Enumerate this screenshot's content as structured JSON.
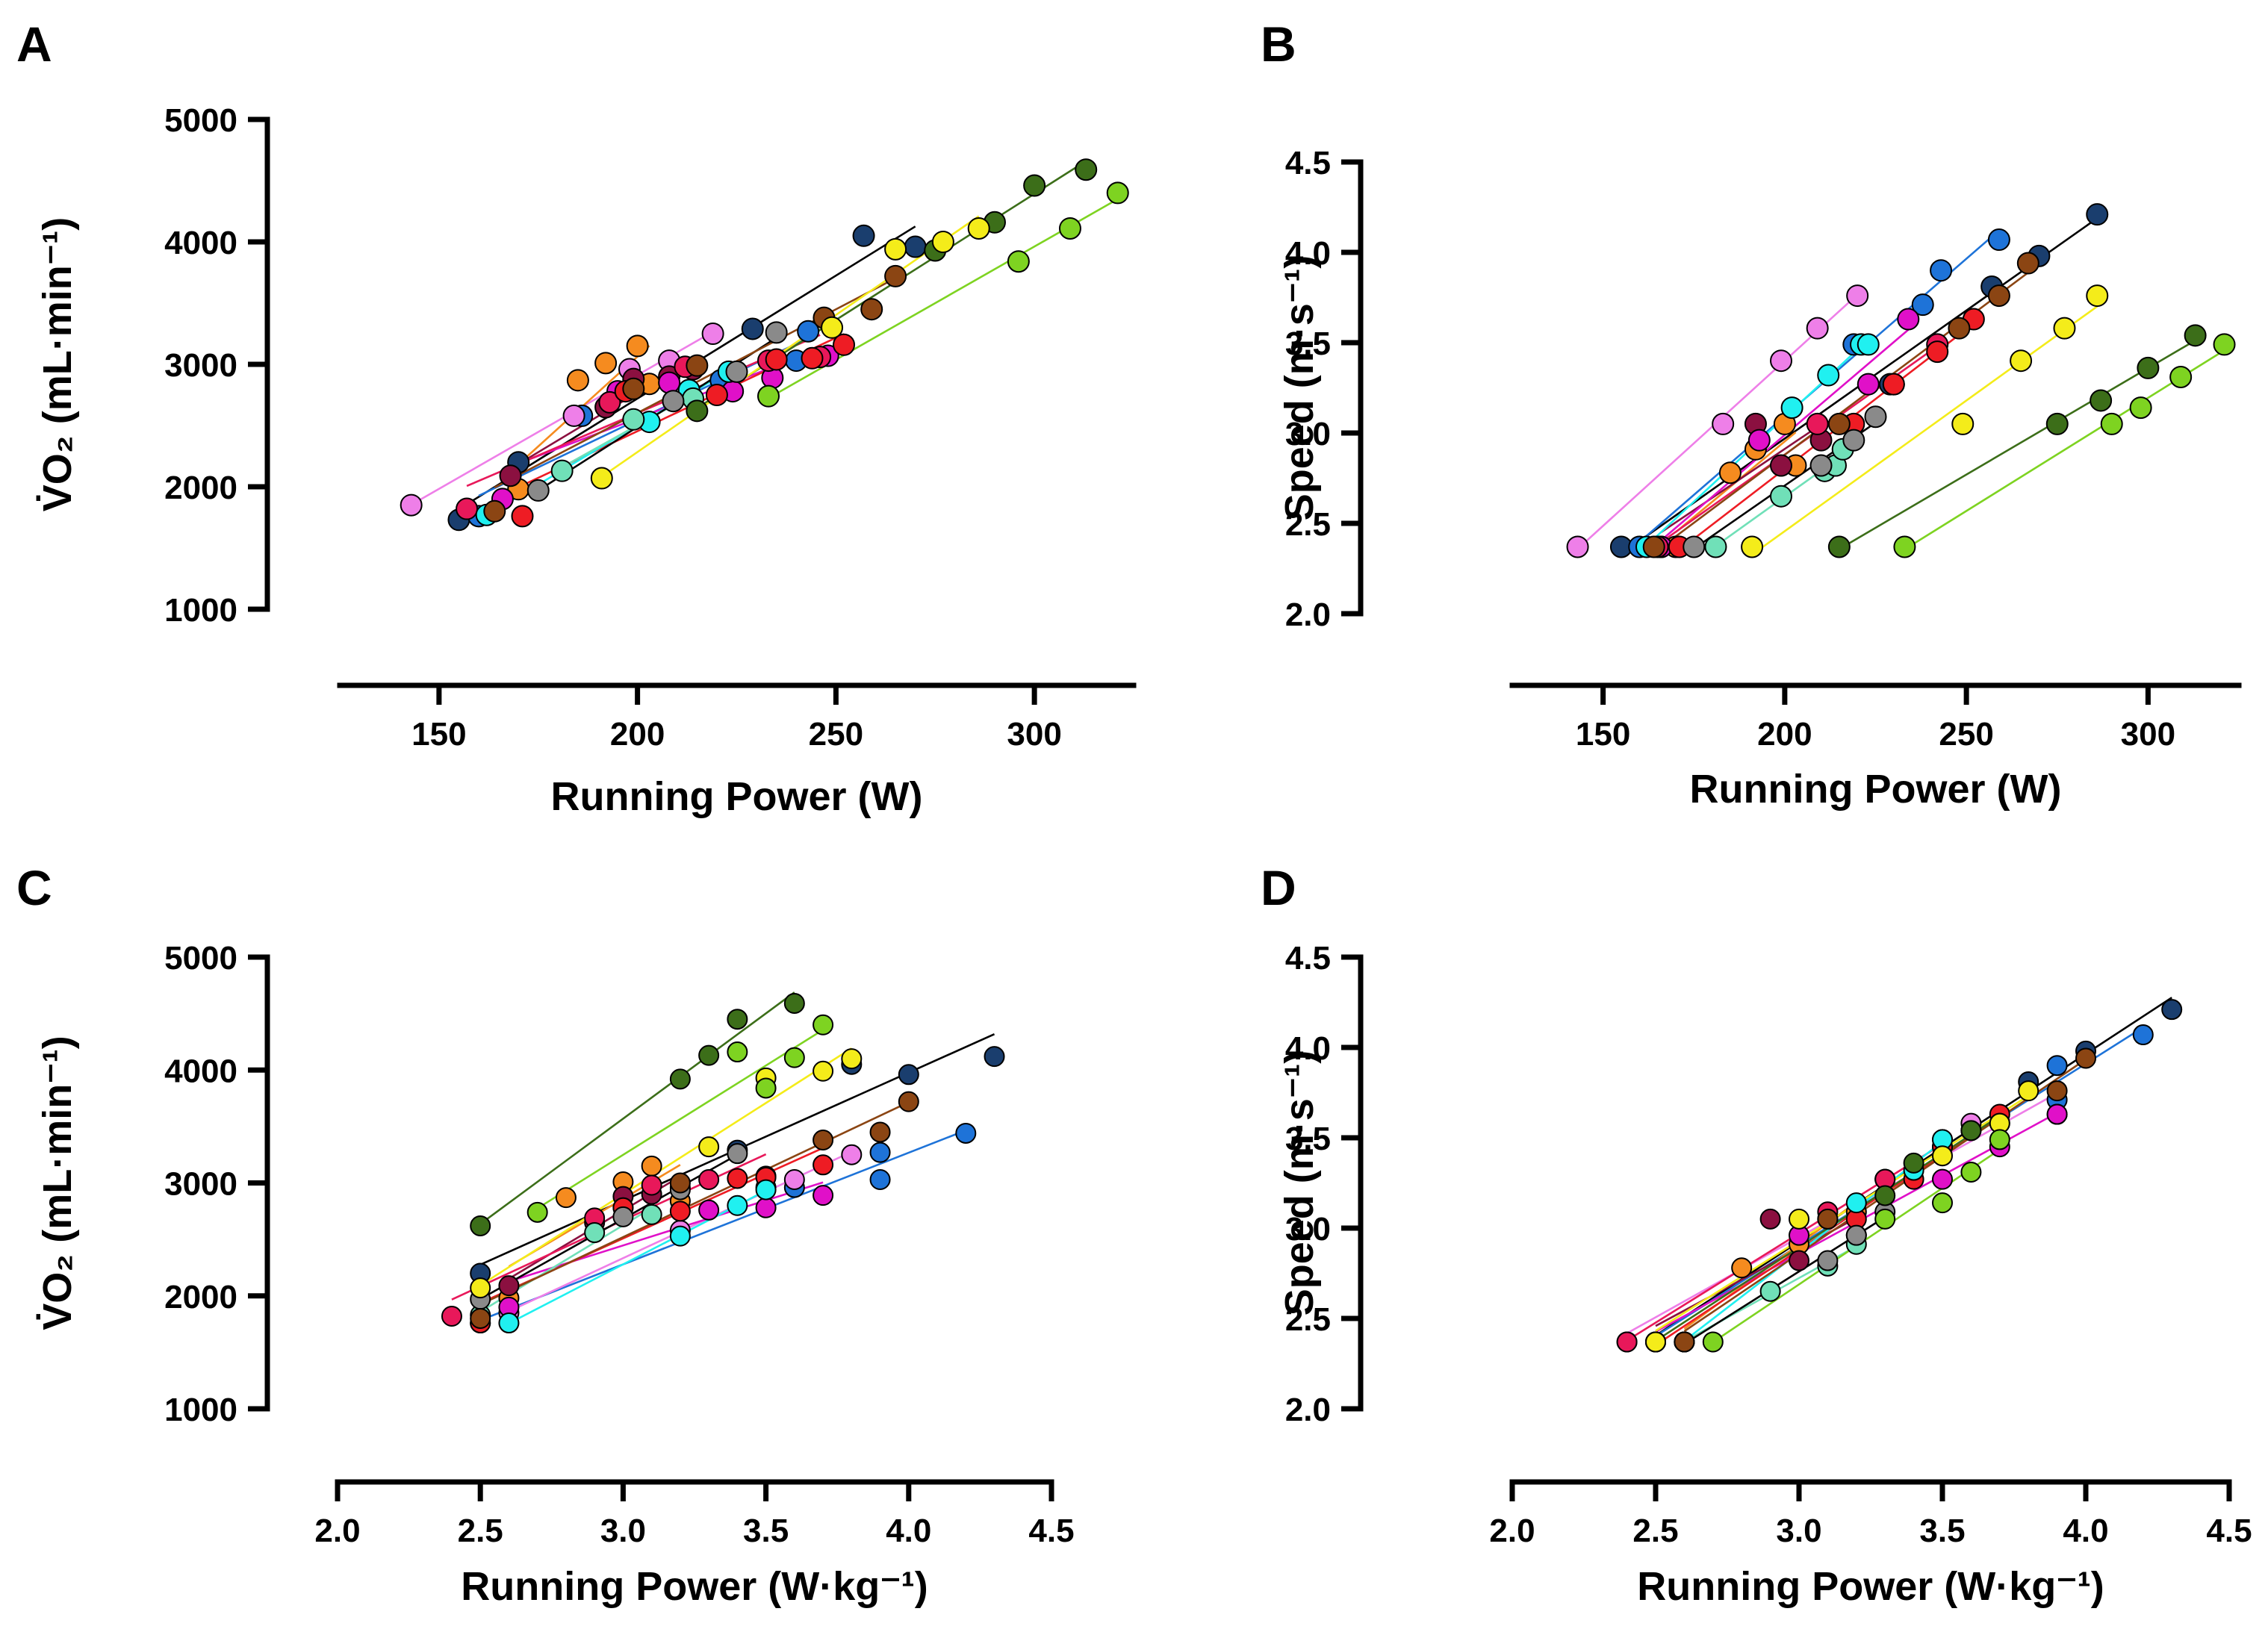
{
  "chart_data": [
    {
      "panel": "A",
      "type": "scatter",
      "xlabel": "Running Power (W)",
      "ylabel": "V̇O₂ (mL·min⁻¹)",
      "xlim": [
        125,
        325
      ],
      "ylim": [
        1000,
        5000
      ],
      "xticks": [
        150,
        200,
        250,
        300
      ],
      "yticks": [
        1000,
        2000,
        3000,
        4000,
        5000
      ],
      "series": [
        {
          "name": "navy",
          "color": "#1a3e6e",
          "x": [
            155,
            170,
            229,
            257,
            270
          ],
          "y": [
            1730,
            2200,
            3290,
            4050,
            3960
          ]
        },
        {
          "name": "blue",
          "color": "#1e73d8",
          "x": [
            160,
            186,
            221,
            240,
            243
          ],
          "y": [
            1760,
            2580,
            2870,
            3030,
            3270
          ]
        },
        {
          "name": "violet",
          "color": "#ee7fe8",
          "x": [
            143,
            184,
            198,
            208,
            219
          ],
          "y": [
            1850,
            2580,
            2960,
            3030,
            3250
          ]
        },
        {
          "name": "orange",
          "color": "#f58b1f",
          "x": [
            170,
            185,
            192,
            200,
            203
          ],
          "y": [
            1980,
            2870,
            3010,
            3150,
            2840
          ]
        },
        {
          "name": "maroon",
          "color": "#8b1040",
          "x": [
            168,
            192,
            199,
            208,
            214
          ],
          "y": [
            2090,
            2650,
            2880,
            2900,
            2960
          ]
        },
        {
          "name": "magenta",
          "color": "#e010c8",
          "x": [
            166,
            195,
            208,
            224,
            234,
            248
          ],
          "y": [
            1900,
            2780,
            2850,
            2780,
            2890,
            3070
          ]
        },
        {
          "name": "crimson",
          "color": "#e8185a",
          "x": [
            157,
            193,
            212,
            233,
            246
          ],
          "y": [
            1820,
            2690,
            2980,
            3030,
            3060
          ]
        },
        {
          "name": "red",
          "color": "#ee1c24",
          "x": [
            171,
            197,
            220,
            235,
            244,
            252
          ],
          "y": [
            1760,
            2780,
            2750,
            3040,
            3050,
            3160
          ]
        },
        {
          "name": "cyan",
          "color": "#20f0f0",
          "x": [
            162,
            203,
            213,
            223
          ],
          "y": [
            1770,
            2530,
            2790,
            2940
          ]
        },
        {
          "name": "mint",
          "color": "#70e0b8",
          "x": [
            181,
            199,
            214
          ],
          "y": [
            2130,
            2550,
            2720
          ]
        },
        {
          "name": "gray",
          "color": "#8a8a8a",
          "x": [
            175,
            209,
            225,
            235
          ],
          "y": [
            1970,
            2700,
            2940,
            3260
          ]
        },
        {
          "name": "brown",
          "color": "#8b4513",
          "x": [
            164,
            199,
            215,
            247,
            259,
            265
          ],
          "y": [
            1800,
            2800,
            2990,
            3380,
            3450,
            3720
          ]
        },
        {
          "name": "dkgreen",
          "color": "#3c6e19",
          "x": [
            215,
            275,
            290,
            300,
            313
          ],
          "y": [
            2620,
            3930,
            4160,
            4460,
            4590
          ]
        },
        {
          "name": "yellow",
          "color": "#f4ec1a",
          "x": [
            191,
            249,
            265,
            277,
            286
          ],
          "y": [
            2070,
            3300,
            3940,
            4000,
            4110
          ]
        },
        {
          "name": "green",
          "color": "#7ed321",
          "x": [
            233,
            296,
            309,
            321
          ],
          "y": [
            2740,
            3840,
            4110,
            4400
          ]
        }
      ]
    },
    {
      "panel": "B",
      "type": "scatter",
      "xlabel": "Running Power (W)",
      "ylabel": "Speed (m·s⁻¹)",
      "xlim": [
        125,
        325
      ],
      "ylim": [
        2.0,
        4.5
      ],
      "xticks": [
        150,
        200,
        250,
        300
      ],
      "yticks": [
        "2.0",
        "2.5",
        "3.0",
        "3.5",
        "4.0",
        "4.5"
      ],
      "series": [
        {
          "name": "navy",
          "color": "#1a3e6e",
          "x": [
            155,
            229,
            257,
            270,
            286
          ],
          "y": [
            2.37,
            3.27,
            3.81,
            3.98,
            4.21
          ]
        },
        {
          "name": "blue",
          "color": "#1e73d8",
          "x": [
            160,
            219,
            238,
            243,
            259
          ],
          "y": [
            2.37,
            3.49,
            3.71,
            3.9,
            4.07
          ]
        },
        {
          "name": "violet",
          "color": "#ee7fe8",
          "x": [
            143,
            183,
            199,
            209,
            220
          ],
          "y": [
            2.37,
            3.05,
            3.4,
            3.58,
            3.76
          ]
        },
        {
          "name": "orange",
          "color": "#f58b1f",
          "x": [
            170,
            185,
            192,
            200,
            203
          ],
          "y": [
            2.37,
            2.78,
            2.91,
            3.05,
            2.82
          ]
        },
        {
          "name": "maroon",
          "color": "#8b1040",
          "x": [
            166,
            192,
            199,
            210
          ],
          "y": [
            2.37,
            3.05,
            2.82,
            2.96
          ]
        },
        {
          "name": "magenta",
          "color": "#e010c8",
          "x": [
            166,
            193,
            223,
            234
          ],
          "y": [
            2.37,
            2.96,
            3.27,
            3.63
          ]
        },
        {
          "name": "crimson",
          "color": "#e8185a",
          "x": [
            165,
            209,
            230,
            242
          ],
          "y": [
            2.37,
            3.05,
            3.27,
            3.49
          ]
        },
        {
          "name": "red",
          "color": "#ee1c24",
          "x": [
            171,
            219,
            230,
            242,
            252
          ],
          "y": [
            2.37,
            3.05,
            3.27,
            3.45,
            3.63
          ]
        },
        {
          "name": "cyan",
          "color": "#20f0f0",
          "x": [
            162,
            202,
            212,
            221,
            223
          ],
          "y": [
            2.37,
            3.14,
            3.32,
            3.49,
            3.49
          ]
        },
        {
          "name": "mint",
          "color": "#70e0b8",
          "x": [
            181,
            199,
            211,
            214,
            216
          ],
          "y": [
            2.37,
            2.65,
            2.79,
            2.82,
            2.91
          ]
        },
        {
          "name": "gray",
          "color": "#8a8a8a",
          "x": [
            175,
            210,
            219,
            225
          ],
          "y": [
            2.37,
            2.82,
            2.96,
            3.09
          ]
        },
        {
          "name": "brown",
          "color": "#8b4513",
          "x": [
            164,
            215,
            248,
            259,
            267
          ],
          "y": [
            2.37,
            3.05,
            3.58,
            3.76,
            3.94
          ]
        },
        {
          "name": "dkgreen",
          "color": "#3c6e19",
          "x": [
            215,
            275,
            287,
            300,
            313
          ],
          "y": [
            2.37,
            3.05,
            3.18,
            3.36,
            3.54
          ]
        },
        {
          "name": "yellow",
          "color": "#f4ec1a",
          "x": [
            191,
            249,
            265,
            277,
            286
          ],
          "y": [
            2.37,
            3.05,
            3.4,
            3.58,
            3.76
          ]
        },
        {
          "name": "green",
          "color": "#7ed321",
          "x": [
            233,
            290,
            298,
            309,
            321
          ],
          "y": [
            2.37,
            3.05,
            3.14,
            3.31,
            3.49
          ]
        }
      ]
    },
    {
      "panel": "C",
      "type": "scatter",
      "xlabel": "Running Power (W·kg⁻¹)",
      "ylabel": "V̇O₂ (mL·min⁻¹)",
      "xlim": [
        2.0,
        4.5
      ],
      "ylim": [
        1000,
        5000
      ],
      "xticks": [
        "2.0",
        "2.5",
        "3.0",
        "3.5",
        "4.0",
        "4.5"
      ],
      "yticks": [
        1000,
        2000,
        3000,
        4000,
        5000
      ],
      "series": [
        {
          "name": "navy",
          "color": "#1a3e6e",
          "x": [
            2.5,
            3.4,
            3.8,
            4.0,
            4.3
          ],
          "y": [
            2200,
            3290,
            4050,
            3960,
            4120
          ]
        },
        {
          "name": "blue",
          "color": "#1e73d8",
          "x": [
            2.5,
            3.6,
            3.9,
            3.9,
            4.2
          ],
          "y": [
            1760,
            2960,
            3030,
            3270,
            3440
          ]
        },
        {
          "name": "violet",
          "color": "#ee7fe8",
          "x": [
            2.6,
            3.2,
            3.5,
            3.6,
            3.8
          ],
          "y": [
            1850,
            2580,
            2960,
            3030,
            3250
          ]
        },
        {
          "name": "orange",
          "color": "#f58b1f",
          "x": [
            2.6,
            2.8,
            3.0,
            3.1,
            3.2
          ],
          "y": [
            1980,
            2870,
            3010,
            3150,
            2840
          ]
        },
        {
          "name": "maroon",
          "color": "#8b1040",
          "x": [
            2.6,
            2.9,
            3.0,
            3.1,
            3.2
          ],
          "y": [
            2090,
            2650,
            2880,
            2900,
            2960
          ]
        },
        {
          "name": "magenta",
          "color": "#e010c8",
          "x": [
            2.6,
            3.0,
            3.3,
            3.5,
            3.7
          ],
          "y": [
            1900,
            2780,
            2760,
            2780,
            2890
          ]
        },
        {
          "name": "crimson",
          "color": "#e8185a",
          "x": [
            2.4,
            2.9,
            3.1,
            3.3,
            3.5
          ],
          "y": [
            1820,
            2690,
            2980,
            3030,
            3060
          ]
        },
        {
          "name": "red",
          "color": "#ee1c24",
          "x": [
            2.5,
            3.0,
            3.2,
            3.4,
            3.5,
            3.7
          ],
          "y": [
            1760,
            2780,
            2750,
            3040,
            3050,
            3160
          ]
        },
        {
          "name": "cyan",
          "color": "#20f0f0",
          "x": [
            2.6,
            3.2,
            3.4,
            3.5
          ],
          "y": [
            1760,
            2530,
            2800,
            2940
          ]
        },
        {
          "name": "mint",
          "color": "#70e0b8",
          "x": [
            2.5,
            2.9,
            3.1
          ],
          "y": [
            1830,
            2560,
            2720
          ]
        },
        {
          "name": "gray",
          "color": "#8a8a8a",
          "x": [
            2.5,
            3.0,
            3.2,
            3.4
          ],
          "y": [
            1970,
            2700,
            2940,
            3260
          ]
        },
        {
          "name": "brown",
          "color": "#8b4513",
          "x": [
            2.5,
            3.2,
            3.7,
            3.9,
            4.0
          ],
          "y": [
            1800,
            3000,
            3380,
            3450,
            3720
          ]
        },
        {
          "name": "dkgreen",
          "color": "#3c6e19",
          "x": [
            2.5,
            3.2,
            3.3,
            3.4,
            3.6
          ],
          "y": [
            2620,
            3920,
            4130,
            4450,
            4590
          ]
        },
        {
          "name": "yellow",
          "color": "#f4ec1a",
          "x": [
            2.5,
            3.3,
            3.5,
            3.7,
            3.8
          ],
          "y": [
            2070,
            3320,
            3930,
            3990,
            4100
          ]
        },
        {
          "name": "green",
          "color": "#7ed321",
          "x": [
            2.7,
            3.4,
            3.5,
            3.6,
            3.7
          ],
          "y": [
            2740,
            4160,
            3840,
            4110,
            4400
          ]
        }
      ]
    },
    {
      "panel": "D",
      "type": "scatter",
      "xlabel": "Running Power (W·kg⁻¹)",
      "ylabel": "Speed (m·s⁻¹)",
      "xlim": [
        2.0,
        4.5
      ],
      "ylim": [
        2.0,
        4.5
      ],
      "xticks": [
        "2.0",
        "2.5",
        "3.0",
        "3.5",
        "4.0",
        "4.5"
      ],
      "yticks": [
        "2.0",
        "2.5",
        "3.0",
        "3.5",
        "4.0",
        "4.5"
      ],
      "series": [
        {
          "name": "navy",
          "color": "#1a3e6e",
          "x": [
            2.5,
            3.3,
            3.8,
            4.0,
            4.3
          ],
          "y": [
            2.37,
            3.27,
            3.81,
            3.98,
            4.21
          ]
        },
        {
          "name": "blue",
          "color": "#1e73d8",
          "x": [
            2.5,
            3.5,
            3.9,
            3.9,
            4.2
          ],
          "y": [
            2.37,
            3.49,
            3.71,
            3.9,
            4.07
          ]
        },
        {
          "name": "violet",
          "color": "#ee7fe8",
          "x": [
            2.4,
            3.1,
            3.3,
            3.6,
            3.9
          ],
          "y": [
            2.37,
            3.05,
            3.27,
            3.58,
            3.63
          ]
        },
        {
          "name": "orange",
          "color": "#f58b1f",
          "x": [
            2.6,
            2.8,
            3.0,
            3.1,
            3.2
          ],
          "y": [
            2.37,
            2.78,
            2.91,
            3.05,
            3.09
          ]
        },
        {
          "name": "maroon",
          "color": "#8b1040",
          "x": [
            2.5,
            2.9,
            3.0,
            3.2
          ],
          "y": [
            2.37,
            3.05,
            2.82,
            2.96
          ]
        },
        {
          "name": "magenta",
          "color": "#e010c8",
          "x": [
            2.5,
            3.0,
            3.5,
            3.7,
            3.9
          ],
          "y": [
            2.37,
            2.96,
            3.27,
            3.45,
            3.63
          ]
        },
        {
          "name": "crimson",
          "color": "#e8185a",
          "x": [
            2.4,
            3.1,
            3.3,
            3.5
          ],
          "y": [
            2.37,
            3.09,
            3.27,
            3.45
          ]
        },
        {
          "name": "red",
          "color": "#ee1c24",
          "x": [
            2.5,
            3.2,
            3.4,
            3.5,
            3.7
          ],
          "y": [
            2.37,
            3.05,
            3.27,
            3.45,
            3.63
          ]
        },
        {
          "name": "cyan",
          "color": "#20f0f0",
          "x": [
            2.6,
            3.2,
            3.4,
            3.5
          ],
          "y": [
            2.37,
            3.14,
            3.32,
            3.49
          ]
        },
        {
          "name": "mint",
          "color": "#70e0b8",
          "x": [
            2.6,
            2.9,
            3.1,
            3.2
          ],
          "y": [
            2.37,
            2.65,
            2.79,
            2.91
          ]
        },
        {
          "name": "gray",
          "color": "#8a8a8a",
          "x": [
            2.6,
            3.1,
            3.2,
            3.3
          ],
          "y": [
            2.37,
            2.82,
            2.96,
            3.09
          ]
        },
        {
          "name": "brown",
          "color": "#8b4513",
          "x": [
            2.6,
            3.1,
            3.6,
            3.9,
            4.0
          ],
          "y": [
            2.37,
            3.05,
            3.54,
            3.76,
            3.94
          ]
        },
        {
          "name": "dkgreen",
          "color": "#3c6e19",
          "x": [
            2.5,
            3.3,
            3.4,
            3.6,
            3.7
          ],
          "y": [
            2.37,
            3.18,
            3.36,
            3.54,
            3.58
          ]
        },
        {
          "name": "yellow",
          "color": "#f4ec1a",
          "x": [
            2.5,
            3.0,
            3.5,
            3.7,
            3.8
          ],
          "y": [
            2.37,
            3.05,
            3.4,
            3.58,
            3.76
          ]
        },
        {
          "name": "green",
          "color": "#7ed321",
          "x": [
            2.7,
            3.3,
            3.5,
            3.6,
            3.7
          ],
          "y": [
            2.37,
            3.05,
            3.14,
            3.31,
            3.49
          ]
        }
      ]
    }
  ]
}
